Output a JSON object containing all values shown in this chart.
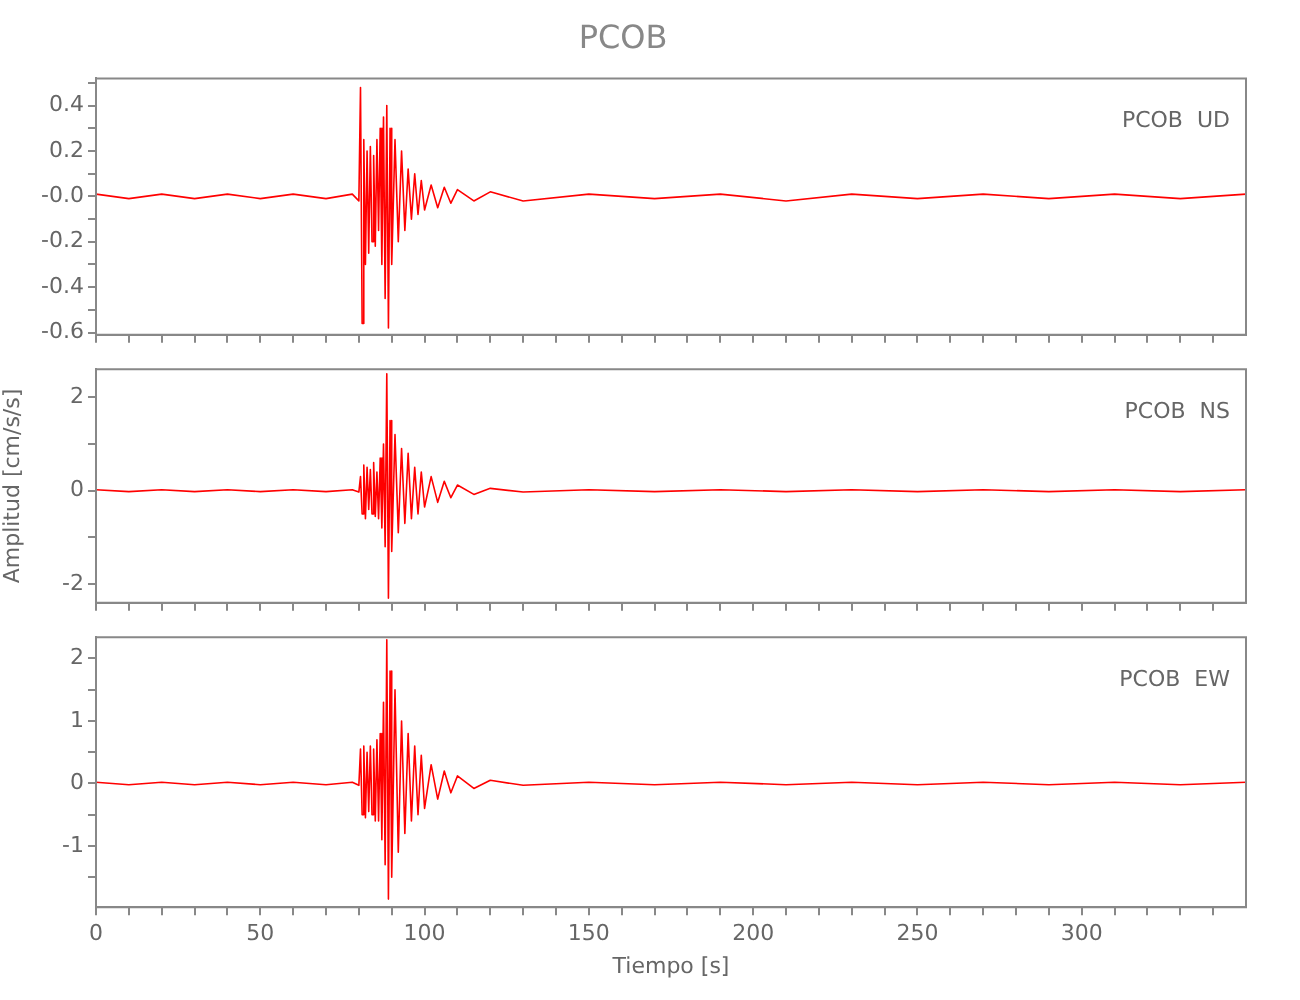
{
  "chart_data": [
    {
      "type": "line",
      "title": "PCOB",
      "annotations": [
        "PCOB  UD"
      ],
      "tick_labels": "y",
      "x": [
        0,
        10,
        20,
        30,
        40,
        50,
        60,
        70,
        78,
        80,
        80.5,
        81,
        81.5,
        82,
        82.5,
        83,
        83.5,
        84,
        84.5,
        85,
        85.5,
        86,
        86.5,
        87,
        87.5,
        88,
        88.5,
        89,
        89.5,
        90,
        91,
        92,
        93,
        94,
        95,
        96,
        97,
        98,
        99,
        100,
        102,
        104,
        106,
        108,
        110,
        115,
        120,
        130,
        150,
        170,
        190,
        210,
        230,
        250,
        270,
        290,
        310,
        330,
        350
      ],
      "series": [
        {
          "color": "#ff0000",
          "values": [
            0.01,
            -0.01,
            0.01,
            -0.01,
            0.01,
            -0.01,
            0.01,
            -0.01,
            0.01,
            -0.02,
            0.48,
            -0.56,
            0.25,
            -0.3,
            0.2,
            -0.25,
            0.22,
            -0.2,
            0.18,
            -0.22,
            0.25,
            -0.15,
            0.3,
            -0.3,
            0.35,
            -0.45,
            0.4,
            -0.58,
            0.3,
            -0.3,
            0.25,
            -0.2,
            0.2,
            -0.15,
            0.12,
            -0.1,
            0.1,
            -0.08,
            0.07,
            -0.06,
            0.05,
            -0.05,
            0.04,
            -0.03,
            0.03,
            -0.02,
            0.02,
            -0.02,
            0.01,
            -0.01,
            0.01,
            -0.02,
            0.01,
            -0.01,
            0.01,
            -0.01,
            0.01,
            -0.01,
            0.01
          ]
        }
      ],
      "xlim": [
        0,
        350
      ],
      "xticks": [
        0,
        {
          "value": 10,
          "label": null
        },
        {
          "value": 20,
          "label": null
        },
        {
          "value": 30,
          "label": null
        },
        {
          "value": 40,
          "label": null
        },
        50,
        {
          "value": 60,
          "label": null
        },
        {
          "value": 70,
          "label": null
        },
        {
          "value": 80,
          "label": null
        },
        {
          "value": 90,
          "label": null
        },
        100,
        {
          "value": 110,
          "label": null
        },
        {
          "value": 120,
          "label": null
        },
        {
          "value": 130,
          "label": null
        },
        {
          "value": 140,
          "label": null
        },
        150,
        {
          "value": 160,
          "label": null
        },
        {
          "value": 170,
          "label": null
        },
        {
          "value": 180,
          "label": null
        },
        {
          "value": 190,
          "label": null
        },
        200,
        {
          "value": 210,
          "label": null
        },
        {
          "value": 220,
          "label": null
        },
        {
          "value": 230,
          "label": null
        },
        {
          "value": 240,
          "label": null
        },
        250,
        {
          "value": 260,
          "label": null
        },
        {
          "value": 270,
          "label": null
        },
        {
          "value": 280,
          "label": null
        },
        {
          "value": 290,
          "label": null
        },
        300,
        {
          "value": 310,
          "label": null
        },
        {
          "value": 320,
          "label": null
        },
        {
          "value": 330,
          "label": null
        },
        {
          "value": 340,
          "label": null
        }
      ],
      "ylim": [
        -0.61,
        0.52
      ],
      "yticks": [
        -0.6,
        {
          "value": -0.5,
          "label": null
        },
        -0.4,
        {
          "value": -0.3,
          "label": null
        },
        -0.2,
        {
          "value": -0.1,
          "label": null
        },
        {
          "value": 0,
          "label": "-0.0"
        },
        {
          "value": 0.1,
          "label": null
        },
        0.2,
        {
          "value": 0.3,
          "label": null
        },
        0.4,
        {
          "value": 0.5,
          "label": null
        }
      ]
    },
    {
      "type": "line",
      "ylabel": "Amplitud [cm/s/s]",
      "annotations": [
        "PCOB  NS"
      ],
      "tick_labels": "y",
      "x": [
        0,
        10,
        20,
        30,
        40,
        50,
        60,
        70,
        78,
        80,
        80.5,
        81,
        81.5,
        82,
        82.5,
        83,
        83.5,
        84,
        84.5,
        85,
        85.5,
        86,
        86.5,
        87,
        87.5,
        88,
        88.5,
        89,
        89.5,
        90,
        91,
        92,
        93,
        94,
        95,
        96,
        97,
        98,
        99,
        100,
        102,
        104,
        106,
        108,
        110,
        115,
        120,
        130,
        150,
        170,
        190,
        210,
        230,
        250,
        270,
        290,
        310,
        330,
        350
      ],
      "series": [
        {
          "color": "#ff0000",
          "values": [
            0.02,
            -0.02,
            0.02,
            -0.02,
            0.02,
            -0.02,
            0.02,
            -0.02,
            0.02,
            -0.03,
            0.3,
            -0.5,
            0.55,
            -0.6,
            0.5,
            -0.4,
            0.45,
            -0.5,
            0.6,
            -0.55,
            0.4,
            -0.6,
            0.7,
            -0.8,
            1.0,
            -1.2,
            2.5,
            -2.3,
            1.5,
            -1.3,
            1.2,
            -0.9,
            0.9,
            -0.7,
            0.8,
            -0.6,
            0.5,
            -0.5,
            0.4,
            -0.35,
            0.3,
            -0.25,
            0.2,
            -0.15,
            0.12,
            -0.08,
            0.05,
            -0.03,
            0.02,
            -0.02,
            0.02,
            -0.02,
            0.02,
            -0.02,
            0.02,
            -0.02,
            0.02,
            -0.02,
            0.02
          ]
        }
      ],
      "xlim": [
        0,
        350
      ],
      "xticks": [
        0,
        {
          "value": 10,
          "label": null
        },
        {
          "value": 20,
          "label": null
        },
        {
          "value": 30,
          "label": null
        },
        {
          "value": 40,
          "label": null
        },
        50,
        {
          "value": 60,
          "label": null
        },
        {
          "value": 70,
          "label": null
        },
        {
          "value": 80,
          "label": null
        },
        {
          "value": 90,
          "label": null
        },
        100,
        {
          "value": 110,
          "label": null
        },
        {
          "value": 120,
          "label": null
        },
        {
          "value": 130,
          "label": null
        },
        {
          "value": 140,
          "label": null
        },
        150,
        {
          "value": 160,
          "label": null
        },
        {
          "value": 170,
          "label": null
        },
        {
          "value": 180,
          "label": null
        },
        {
          "value": 190,
          "label": null
        },
        200,
        {
          "value": 210,
          "label": null
        },
        {
          "value": 220,
          "label": null
        },
        {
          "value": 230,
          "label": null
        },
        {
          "value": 240,
          "label": null
        },
        250,
        {
          "value": 260,
          "label": null
        },
        {
          "value": 270,
          "label": null
        },
        {
          "value": 280,
          "label": null
        },
        {
          "value": 290,
          "label": null
        },
        300,
        {
          "value": 310,
          "label": null
        },
        {
          "value": 320,
          "label": null
        },
        {
          "value": 330,
          "label": null
        },
        {
          "value": 340,
          "label": null
        }
      ],
      "ylim": [
        -2.4,
        2.6
      ],
      "yticks": [
        -2,
        {
          "value": -1,
          "label": null
        },
        0,
        {
          "value": 1,
          "label": null
        },
        2
      ]
    },
    {
      "type": "line",
      "xlabel": "Tiempo [s]",
      "annotations": [
        "PCOB  EW"
      ],
      "x": [
        0,
        10,
        20,
        30,
        40,
        50,
        60,
        70,
        78,
        80,
        80.5,
        81,
        81.5,
        82,
        82.5,
        83,
        83.5,
        84,
        84.5,
        85,
        85.5,
        86,
        86.5,
        87,
        87.5,
        88,
        88.5,
        89,
        89.5,
        90,
        91,
        92,
        93,
        94,
        95,
        96,
        97,
        98,
        99,
        100,
        102,
        104,
        106,
        108,
        110,
        115,
        120,
        130,
        150,
        170,
        190,
        210,
        230,
        250,
        270,
        290,
        310,
        330,
        350
      ],
      "series": [
        {
          "color": "#ff0000",
          "values": [
            0.02,
            -0.02,
            0.02,
            -0.02,
            0.02,
            -0.02,
            0.02,
            -0.02,
            0.02,
            -0.03,
            0.55,
            -0.5,
            0.6,
            -0.55,
            0.5,
            -0.45,
            0.6,
            -0.5,
            0.55,
            -0.6,
            0.7,
            -0.6,
            0.8,
            -0.9,
            1.3,
            -1.3,
            2.3,
            -1.85,
            1.8,
            -1.5,
            1.5,
            -1.1,
            1.0,
            -0.8,
            0.8,
            -0.6,
            0.6,
            -0.5,
            0.45,
            -0.4,
            0.3,
            -0.25,
            0.2,
            -0.15,
            0.12,
            -0.08,
            0.05,
            -0.03,
            0.02,
            -0.02,
            0.02,
            -0.02,
            0.02,
            -0.02,
            0.02,
            -0.02,
            0.02,
            -0.02,
            0.02
          ]
        }
      ],
      "xlim": [
        0,
        350
      ],
      "xticks": [
        0,
        {
          "value": 10,
          "label": null
        },
        {
          "value": 20,
          "label": null
        },
        {
          "value": 30,
          "label": null
        },
        {
          "value": 40,
          "label": null
        },
        50,
        {
          "value": 60,
          "label": null
        },
        {
          "value": 70,
          "label": null
        },
        {
          "value": 80,
          "label": null
        },
        {
          "value": 90,
          "label": null
        },
        100,
        {
          "value": 110,
          "label": null
        },
        {
          "value": 120,
          "label": null
        },
        {
          "value": 130,
          "label": null
        },
        {
          "value": 140,
          "label": null
        },
        150,
        {
          "value": 160,
          "label": null
        },
        {
          "value": 170,
          "label": null
        },
        {
          "value": 180,
          "label": null
        },
        {
          "value": 190,
          "label": null
        },
        200,
        {
          "value": 210,
          "label": null
        },
        {
          "value": 220,
          "label": null
        },
        {
          "value": 230,
          "label": null
        },
        {
          "value": 240,
          "label": null
        },
        250,
        {
          "value": 260,
          "label": null
        },
        {
          "value": 270,
          "label": null
        },
        {
          "value": 280,
          "label": null
        },
        {
          "value": 290,
          "label": null
        },
        300,
        {
          "value": 310,
          "label": null
        },
        {
          "value": 320,
          "label": null
        },
        {
          "value": 330,
          "label": null
        },
        {
          "value": 340,
          "label": null
        }
      ],
      "ylim": [
        -1.98,
        2.34
      ],
      "yticks": [
        {
          "value": -1.5,
          "label": null
        },
        -1,
        {
          "value": -0.5,
          "label": null
        },
        0,
        {
          "value": 0.5,
          "label": null
        },
        1,
        {
          "value": 1.5,
          "label": null
        },
        2
      ]
    }
  ]
}
